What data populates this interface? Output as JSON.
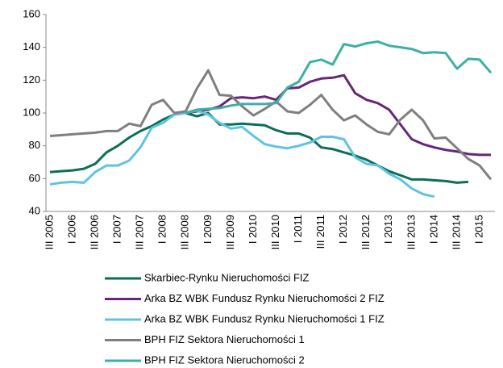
{
  "chart_data": {
    "type": "line",
    "categories": [
      "III 2005",
      null,
      "I 2006",
      null,
      "III 2006",
      null,
      "I 2007",
      null,
      "III 2007",
      null,
      "I 2008",
      null,
      "III 2008",
      null,
      "I 2009",
      null,
      "III 2009",
      null,
      "I 2010",
      null,
      "III 2010",
      null,
      "I 2011",
      null,
      "III 2011",
      null,
      "I 2012",
      null,
      "III 2012",
      null,
      "I 2013",
      null,
      "III 2013",
      null,
      "I 2014",
      null,
      "III 2014",
      null,
      "I 2015",
      null
    ],
    "ylim": [
      40,
      160
    ],
    "yticks": [
      40,
      60,
      80,
      100,
      120,
      140,
      160
    ],
    "series": [
      {
        "name": "Skarbiec-Rynku Nieruchomości FIZ",
        "color": "#0b6e55",
        "values": [
          64,
          64.5,
          65,
          66,
          69,
          76,
          80,
          85,
          89,
          92,
          96,
          99,
          100,
          98,
          100,
          93,
          93,
          93.5,
          93,
          92.5,
          89.5,
          87.5,
          87.5,
          85,
          79,
          78,
          76,
          74,
          71.5,
          68,
          64.5,
          62,
          59.5,
          59.5,
          59,
          58.5,
          57.5,
          58,
          null,
          null
        ]
      },
      {
        "name": "Arka BZ WBK Fundusz Rynku Nieruchomości 2 FIZ",
        "color": "#66267a",
        "values": [
          null,
          null,
          null,
          null,
          null,
          null,
          null,
          null,
          null,
          null,
          null,
          null,
          100,
          101,
          102,
          104,
          109,
          109.5,
          109,
          110,
          108,
          115,
          115.5,
          119,
          121,
          121.5,
          123,
          112,
          108,
          106,
          102,
          93,
          84,
          81,
          79,
          77.5,
          76.5,
          75,
          74.5,
          74.5
        ]
      },
      {
        "name": "Arka BZ WBK Fundusz Rynku Nieruchomości 1 FIZ",
        "color": "#5ec4e0",
        "values": [
          56.5,
          57.5,
          58,
          57.5,
          64,
          68,
          68,
          71,
          79,
          91,
          94,
          99,
          100,
          101.5,
          99,
          94,
          90.5,
          91.5,
          86,
          81,
          79.5,
          78.5,
          80,
          82,
          85.5,
          85.5,
          84,
          73,
          69,
          68,
          63,
          59.5,
          54,
          50.5,
          49,
          null,
          null,
          null,
          null,
          null
        ]
      },
      {
        "name": "BPH FIZ Sektora Nieruchomości 1",
        "color": "#7f7f7f",
        "values": [
          86,
          86.5,
          87,
          87.5,
          88,
          89,
          89,
          93.5,
          92,
          105,
          108,
          100,
          101,
          115,
          126,
          111,
          110.5,
          104,
          98.5,
          102.5,
          107,
          101,
          100,
          105,
          111,
          102,
          95.5,
          98.5,
          93,
          88.5,
          87,
          96,
          102,
          95.5,
          84.5,
          85,
          78.5,
          72,
          68,
          59.5
        ]
      },
      {
        "name": "BPH FIZ Sektora Nieruchomości 2",
        "color": "#3cb0a3",
        "values": [
          null,
          null,
          null,
          null,
          null,
          null,
          null,
          null,
          null,
          null,
          null,
          null,
          100,
          102,
          102.5,
          103,
          104.5,
          105.5,
          105.5,
          105.5,
          106,
          115.5,
          119,
          131,
          132.5,
          129.5,
          142,
          140.5,
          142.5,
          143.5,
          141,
          140,
          139,
          136.5,
          137,
          136.5,
          127,
          133,
          132.5,
          124.5
        ]
      }
    ]
  }
}
